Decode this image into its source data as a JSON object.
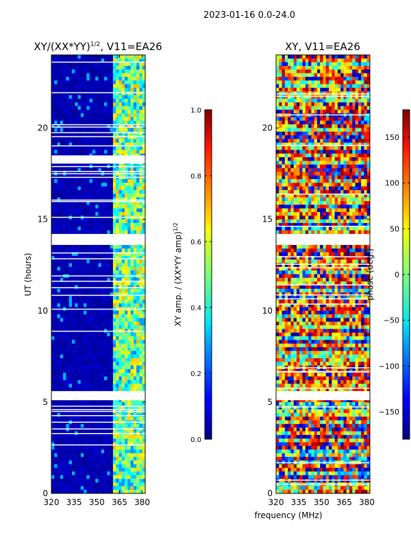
{
  "figure": {
    "suptitle": "2023-01-16 0.0-24.0",
    "xlabel": "frequency (MHz)"
  },
  "chart_data": [
    {
      "type": "heatmap",
      "title": "XY/(XX*YY)",
      "title_exponent": "1/2",
      "title_suffix": ", V11=EA26",
      "quantity": "amplitude",
      "xlabel": "frequency (MHz)",
      "ylabel": "UT (hours)",
      "xlim": [
        320,
        382
      ],
      "ylim": [
        0,
        24
      ],
      "xticks": [
        320,
        335,
        350,
        365,
        380
      ],
      "yticks": [
        0,
        5,
        10,
        15,
        20
      ],
      "colorbar": {
        "label": "XY amp. / (XX*YY amp)",
        "label_exponent": "1/2",
        "range": [
          0.0,
          1.0
        ],
        "ticks": [
          "0.0",
          "0.2",
          "0.4",
          "0.6",
          "0.8",
          "1.0"
        ],
        "colormap": "jet"
      },
      "rfi_band_mhz": [
        360,
        382
      ],
      "flagged_hours": [
        [
          5.1,
          5.6
        ],
        [
          13.6,
          14.2
        ],
        [
          18.1,
          18.5
        ]
      ]
    },
    {
      "type": "heatmap",
      "title": "XY, V11=EA26",
      "quantity": "phase",
      "xlim": [
        320,
        382
      ],
      "ylim": [
        0,
        24
      ],
      "xticks": [
        320,
        335,
        350,
        365,
        380
      ],
      "yticks": [
        0,
        5,
        10,
        15,
        20
      ],
      "colorbar": {
        "label": "phase (deg.)",
        "range": [
          -180,
          180
        ],
        "ticks": [
          "−150",
          "−100",
          "−50",
          "0",
          "50",
          "100",
          "150"
        ],
        "colormap": "jet"
      },
      "flagged_hours": [
        [
          5.1,
          5.6
        ],
        [
          13.6,
          14.2
        ]
      ]
    }
  ]
}
